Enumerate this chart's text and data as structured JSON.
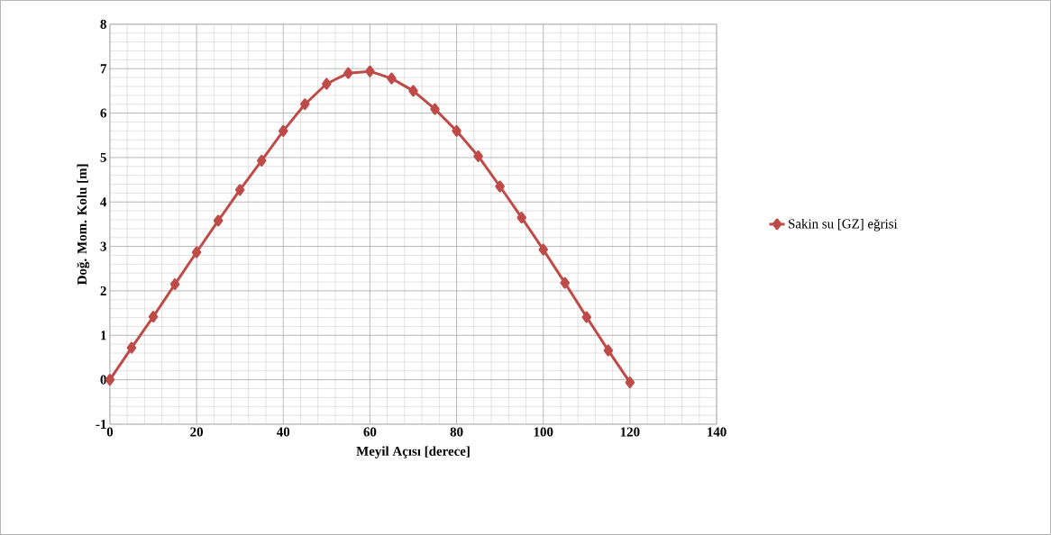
{
  "chart_data": {
    "type": "line",
    "xlabel": "Meyil Açısı [derece]",
    "ylabel": "Doğ. Mom. Kolu [m]",
    "xlim": [
      0,
      140
    ],
    "xticks": [
      0,
      20,
      40,
      60,
      80,
      100,
      120,
      140
    ],
    "ylim": [
      -1,
      8
    ],
    "yticks": [
      -1,
      0,
      1,
      2,
      3,
      4,
      5,
      6,
      7,
      8
    ],
    "grid": true,
    "legend": "right",
    "marker": "diamond",
    "line_style": "solid",
    "x": [
      0,
      5,
      10,
      15,
      20,
      25,
      30,
      35,
      40,
      45,
      50,
      55,
      60,
      65,
      70,
      75,
      80,
      85,
      90,
      95,
      100,
      105,
      110,
      115,
      120
    ],
    "series": [
      {
        "name": "Sakin su [GZ] eğrisi",
        "color": "#be4b48",
        "values": [
          0,
          0.72,
          1.42,
          2.15,
          2.87,
          3.58,
          4.27,
          4.93,
          5.6,
          6.2,
          6.66,
          6.9,
          6.94,
          6.78,
          6.5,
          6.09,
          5.6,
          5.03,
          4.35,
          3.65,
          2.93,
          2.18,
          1.41,
          0.66,
          -0.06
        ]
      }
    ]
  }
}
